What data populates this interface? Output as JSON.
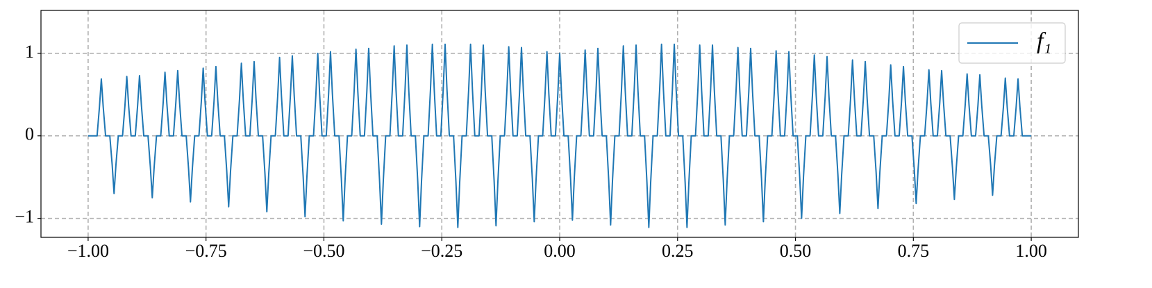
{
  "chart_data": {
    "type": "line",
    "x": [
      -1,
      -0.981,
      -0.976,
      -0.972,
      -0.968,
      -0.963,
      -0.954,
      -0.949,
      -0.945,
      -0.941,
      -0.936,
      -0.927,
      -0.922,
      -0.918,
      -0.914,
      -0.909,
      -0.9,
      -0.895,
      -0.891,
      -0.887,
      -0.882,
      -0.873,
      -0.868,
      -0.864,
      -0.86,
      -0.855,
      -0.846,
      -0.841,
      -0.837,
      -0.833,
      -0.828,
      -0.819,
      -0.814,
      -0.81,
      -0.806,
      -0.801,
      -0.792,
      -0.787,
      -0.783,
      -0.779,
      -0.774,
      -0.765,
      -0.76,
      -0.756,
      -0.752,
      -0.747,
      -0.738,
      -0.733,
      -0.729,
      -0.725,
      -0.72,
      -0.711,
      -0.706,
      -0.702,
      -0.698,
      -0.693,
      -0.684,
      -0.679,
      -0.675,
      -0.671,
      -0.666,
      -0.657,
      -0.652,
      -0.648,
      -0.644,
      -0.639,
      -0.63,
      -0.625,
      -0.621,
      -0.617,
      -0.612,
      -0.603,
      -0.598,
      -0.594,
      -0.59,
      -0.585,
      -0.576,
      -0.571,
      -0.567,
      -0.563,
      -0.558,
      -0.549,
      -0.544,
      -0.54,
      -0.536,
      -0.531,
      -0.522,
      -0.517,
      -0.513,
      -0.509,
      -0.504,
      -0.495,
      -0.49,
      -0.486,
      -0.482,
      -0.477,
      -0.468,
      -0.463,
      -0.459,
      -0.455,
      -0.45,
      -0.441,
      -0.436,
      -0.432,
      -0.428,
      -0.423,
      -0.414,
      -0.409,
      -0.405,
      -0.401,
      -0.396,
      -0.387,
      -0.382,
      -0.378,
      -0.374,
      -0.369,
      -0.36,
      -0.355,
      -0.351,
      -0.347,
      -0.342,
      -0.333,
      -0.328,
      -0.324,
      -0.32,
      -0.315,
      -0.306,
      -0.301,
      -0.297,
      -0.293,
      -0.288,
      -0.279,
      -0.274,
      -0.27,
      -0.266,
      -0.261,
      -0.252,
      -0.247,
      -0.243,
      -0.239,
      -0.234,
      -0.225,
      -0.22,
      -0.216,
      -0.212,
      -0.207,
      -0.198,
      -0.193,
      -0.189,
      -0.185,
      -0.18,
      -0.171,
      -0.166,
      -0.162,
      -0.158,
      -0.153,
      -0.144,
      -0.139,
      -0.135,
      -0.131,
      -0.126,
      -0.117,
      -0.112,
      -0.108,
      -0.104,
      -0.099,
      -0.09,
      -0.085,
      -0.081,
      -0.077,
      -0.072,
      -0.063,
      -0.058,
      -0.054,
      -0.05,
      -0.045,
      -0.036,
      -0.031,
      -0.027,
      -0.023,
      -0.018,
      -0.009,
      -0.004,
      0,
      0.004,
      0.009,
      0.018,
      0.023,
      0.027,
      0.031,
      0.036,
      0.045,
      0.05,
      0.054,
      0.058,
      0.063,
      0.072,
      0.077,
      0.081,
      0.085,
      0.09,
      0.099,
      0.104,
      0.108,
      0.112,
      0.117,
      0.126,
      0.131,
      0.135,
      0.139,
      0.144,
      0.153,
      0.158,
      0.162,
      0.166,
      0.171,
      0.18,
      0.185,
      0.189,
      0.193,
      0.198,
      0.207,
      0.212,
      0.216,
      0.22,
      0.225,
      0.234,
      0.239,
      0.243,
      0.247,
      0.252,
      0.261,
      0.266,
      0.27,
      0.274,
      0.279,
      0.288,
      0.293,
      0.297,
      0.301,
      0.306,
      0.315,
      0.32,
      0.324,
      0.328,
      0.333,
      0.342,
      0.347,
      0.351,
      0.355,
      0.36,
      0.369,
      0.374,
      0.378,
      0.382,
      0.387,
      0.396,
      0.401,
      0.405,
      0.409,
      0.414,
      0.423,
      0.428,
      0.432,
      0.436,
      0.441,
      0.45,
      0.455,
      0.459,
      0.463,
      0.468,
      0.477,
      0.482,
      0.486,
      0.49,
      0.495,
      0.504,
      0.509,
      0.513,
      0.517,
      0.522,
      0.531,
      0.536,
      0.54,
      0.544,
      0.549,
      0.558,
      0.563,
      0.567,
      0.571,
      0.576,
      0.585,
      0.59,
      0.594,
      0.598,
      0.603,
      0.612,
      0.617,
      0.621,
      0.625,
      0.63,
      0.639,
      0.644,
      0.648,
      0.652,
      0.657,
      0.666,
      0.671,
      0.675,
      0.679,
      0.684,
      0.693,
      0.698,
      0.702,
      0.706,
      0.711,
      0.72,
      0.725,
      0.729,
      0.733,
      0.738,
      0.747,
      0.752,
      0.756,
      0.76,
      0.765,
      0.774,
      0.779,
      0.783,
      0.787,
      0.792,
      0.801,
      0.806,
      0.81,
      0.814,
      0.819,
      0.828,
      0.833,
      0.837,
      0.841,
      0.846,
      0.855,
      0.86,
      0.864,
      0.868,
      0.873,
      0.882,
      0.887,
      0.891,
      0.895,
      0.9,
      0.909,
      0.914,
      0.918,
      0.922,
      0.927,
      0.936,
      0.941,
      0.945,
      0.949,
      0.954,
      0.963,
      0.968,
      0.972,
      0.976,
      0.981,
      1
    ],
    "series": [
      {
        "name": "f₁",
        "color": "#1f77b4",
        "values": [
          0,
          0,
          0.35,
          0.69,
          0.35,
          0,
          0,
          -0.35,
          -0.7,
          -0.35,
          0,
          0,
          0.36,
          0.72,
          0.36,
          0,
          0,
          0.37,
          0.73,
          0.37,
          0,
          0,
          -0.38,
          -0.75,
          -0.38,
          0,
          0,
          0.39,
          0.77,
          0.39,
          0,
          0,
          0.4,
          0.79,
          0.4,
          0,
          0,
          -0.4,
          -0.8,
          -0.4,
          0,
          0,
          0.41,
          0.82,
          0.41,
          0,
          0,
          0.42,
          0.84,
          0.42,
          0,
          0,
          -0.43,
          -0.86,
          -0.43,
          0,
          0,
          0.44,
          0.88,
          0.44,
          0,
          0,
          0.45,
          0.9,
          0.45,
          0,
          0,
          -0.46,
          -0.92,
          -0.46,
          0,
          0,
          0.48,
          0.95,
          0.48,
          0,
          0,
          0.49,
          0.97,
          0.49,
          0,
          0,
          -0.49,
          -0.98,
          -0.49,
          0,
          0,
          0.5,
          1,
          0.5,
          0,
          0,
          0.51,
          1.02,
          0.51,
          0,
          0,
          -0.52,
          -1.03,
          -0.52,
          0,
          0,
          0.53,
          1.05,
          0.53,
          0,
          0,
          0.53,
          1.06,
          0.53,
          0,
          0,
          -0.54,
          -1.07,
          -0.54,
          0,
          0,
          0.55,
          1.09,
          0.55,
          0,
          0,
          0.55,
          1.1,
          0.55,
          0,
          0,
          -0.55,
          -1.1,
          -0.55,
          0,
          0,
          0.56,
          1.11,
          0.56,
          0,
          0,
          0.56,
          1.11,
          0.56,
          0,
          0,
          -0.56,
          -1.11,
          -0.56,
          0,
          0,
          0.56,
          1.11,
          0.56,
          0,
          0,
          0.55,
          1.1,
          0.55,
          0,
          0,
          -0.55,
          -1.09,
          -0.55,
          0,
          0,
          0.54,
          1.08,
          0.54,
          0,
          0,
          0.54,
          1.07,
          0.54,
          0,
          0,
          -0.52,
          -1.04,
          -0.52,
          0,
          0,
          0.51,
          1.02,
          0.51,
          0,
          0,
          0.5,
          1,
          0.5,
          0,
          0,
          -0.51,
          -1.02,
          -0.51,
          0,
          0,
          0.52,
          1.04,
          0.52,
          0,
          0,
          0.53,
          1.06,
          0.53,
          0,
          0,
          -0.54,
          -1.08,
          -0.54,
          0,
          0,
          0.55,
          1.09,
          0.55,
          0,
          0,
          0.55,
          1.1,
          0.55,
          0,
          0,
          -0.56,
          -1.11,
          -0.56,
          0,
          0,
          0.56,
          1.11,
          0.56,
          0,
          0,
          0.56,
          1.11,
          0.56,
          0,
          0,
          -0.56,
          -1.11,
          -0.56,
          0,
          0,
          0.55,
          1.1,
          0.55,
          0,
          0,
          0.55,
          1.1,
          0.55,
          0,
          0,
          -0.54,
          -1.08,
          -0.54,
          0,
          0,
          0.54,
          1.07,
          0.54,
          0,
          0,
          0.53,
          1.06,
          0.53,
          0,
          0,
          -0.52,
          -1.04,
          -0.52,
          0,
          0,
          0.52,
          1.03,
          0.52,
          0,
          0,
          0.51,
          1.02,
          0.51,
          0,
          0,
          -0.5,
          -1,
          -0.5,
          0,
          0,
          0.49,
          0.98,
          0.49,
          0,
          0,
          0.48,
          0.96,
          0.48,
          0,
          0,
          -0.47,
          -0.94,
          -0.47,
          0,
          0,
          0.46,
          0.92,
          0.46,
          0,
          0,
          0.45,
          0.9,
          0.45,
          0,
          0,
          -0.44,
          -0.88,
          -0.44,
          0,
          0,
          0.43,
          0.86,
          0.43,
          0,
          0,
          0.42,
          0.84,
          0.42,
          0,
          0,
          -0.41,
          -0.82,
          -0.41,
          0,
          0,
          0.4,
          0.8,
          0.4,
          0,
          0,
          0.4,
          0.79,
          0.4,
          0,
          0,
          -0.39,
          -0.77,
          -0.39,
          0,
          0,
          0.38,
          0.75,
          0.38,
          0,
          0,
          0.37,
          0.74,
          0.37,
          0,
          0,
          -0.36,
          -0.72,
          -0.36,
          0,
          0,
          0.35,
          0.7,
          0.35,
          0,
          0,
          0.35,
          0.69,
          0.35,
          0,
          0
        ]
      }
    ],
    "xlim": [
      -1.1,
      1.1
    ],
    "xticks": [
      {
        "value": -1,
        "label": "−1.00"
      },
      {
        "value": -0.75,
        "label": "−0.75"
      },
      {
        "value": -0.5,
        "label": "−0.50"
      },
      {
        "value": -0.25,
        "label": "−0.25"
      },
      {
        "value": 0,
        "label": "0.00"
      },
      {
        "value": 0.25,
        "label": "0.25"
      },
      {
        "value": 0.5,
        "label": "0.50"
      },
      {
        "value": 0.75,
        "label": "0.75"
      },
      {
        "value": 1,
        "label": "1.00"
      }
    ],
    "ylim": [
      -1.23,
      1.52
    ],
    "yticks": [
      {
        "value": -1,
        "label": "−1"
      },
      0,
      1
    ],
    "grid": true,
    "legend": "upper right"
  }
}
